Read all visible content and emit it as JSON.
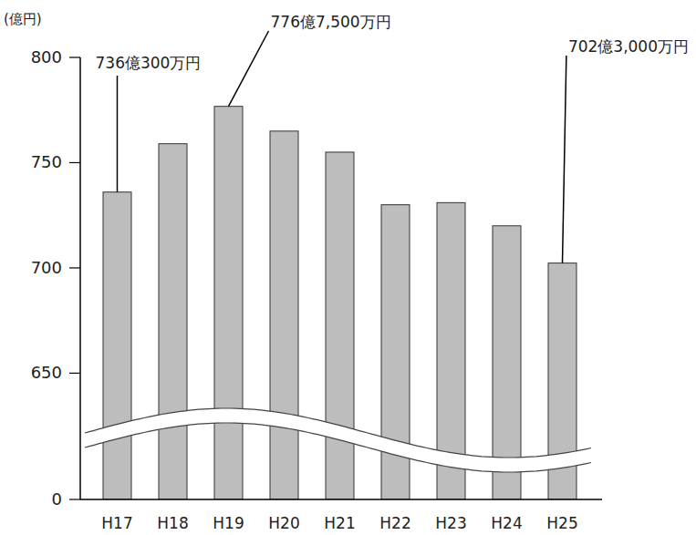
{
  "chart_data": {
    "type": "bar",
    "y_label": "(億円)",
    "categories": [
      "H17",
      "H18",
      "H19",
      "H20",
      "H21",
      "H22",
      "H23",
      "H24",
      "H25"
    ],
    "values": [
      736.03,
      759,
      776.75,
      765,
      755,
      730,
      731,
      720,
      702.3
    ],
    "value_labels": [
      "736億300万円",
      null,
      "776億7,500万円",
      null,
      null,
      null,
      null,
      null,
      "702億3,000万円"
    ],
    "color": "#bdbdbd",
    "ylim": [
      0,
      800
    ],
    "ybreak": [
      0,
      590
    ],
    "yticks": [
      0,
      650,
      700,
      750,
      800
    ],
    "grid": false
  }
}
